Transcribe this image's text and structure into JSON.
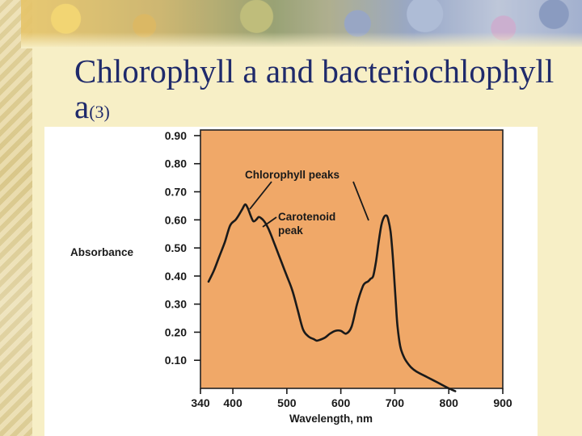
{
  "slide": {
    "title_main": "Chlorophyll a and bacteriochlophyll a",
    "title_sub": "(3)"
  },
  "colors": {
    "plot_background": "#f0a868",
    "curve": "#1a1a1a",
    "title": "#1f2a6b"
  },
  "chart_data": {
    "type": "line",
    "xlabel": "Wavelength, nm",
    "ylabel": "Absorbance",
    "x_ticks": [
      340,
      400,
      500,
      600,
      700,
      800,
      900
    ],
    "x_tick_labels": [
      "340",
      "400",
      "500",
      "600",
      "700",
      "800",
      "900"
    ],
    "y_ticks": [
      0.1,
      0.2,
      0.3,
      0.4,
      0.5,
      0.6,
      0.7,
      0.8,
      0.9
    ],
    "y_tick_labels": [
      "0.10",
      "0.20",
      "0.30",
      "0.40",
      "0.50",
      "0.60",
      "0.70",
      "0.80",
      "0.90"
    ],
    "xlim": [
      340,
      900
    ],
    "ylim": [
      0.0,
      0.92
    ],
    "grid": false,
    "series": [
      {
        "x": [
          355,
          365,
          375,
          385,
          395,
          405,
          412,
          418,
          423,
          428,
          433,
          438,
          443,
          448,
          453,
          458,
          463,
          470,
          478,
          490,
          500,
          510,
          520,
          530,
          540,
          550,
          555,
          560,
          570,
          580,
          590,
          600,
          610,
          620,
          630,
          640,
          645,
          650,
          655,
          660,
          665,
          670,
          675,
          680,
          685,
          688,
          692,
          695,
          698,
          702,
          705,
          710,
          715,
          720,
          730,
          740,
          760,
          780,
          800,
          812
        ],
        "y": [
          0.38,
          0.42,
          0.47,
          0.52,
          0.58,
          0.6,
          0.62,
          0.64,
          0.655,
          0.64,
          0.615,
          0.595,
          0.6,
          0.61,
          0.605,
          0.595,
          0.58,
          0.55,
          0.51,
          0.45,
          0.4,
          0.35,
          0.28,
          0.21,
          0.185,
          0.175,
          0.17,
          0.172,
          0.18,
          0.195,
          0.205,
          0.205,
          0.195,
          0.22,
          0.3,
          0.36,
          0.375,
          0.38,
          0.39,
          0.4,
          0.45,
          0.52,
          0.58,
          0.61,
          0.615,
          0.6,
          0.56,
          0.5,
          0.42,
          0.3,
          0.22,
          0.15,
          0.12,
          0.1,
          0.075,
          0.06,
          0.04,
          0.02,
          0.0,
          -0.01
        ]
      }
    ],
    "annotations": {
      "chlorophyll_peaks": "Chlorophyll peaks",
      "carotenoid_line1": "Carotenoid",
      "carotenoid_line2": "peak"
    }
  }
}
